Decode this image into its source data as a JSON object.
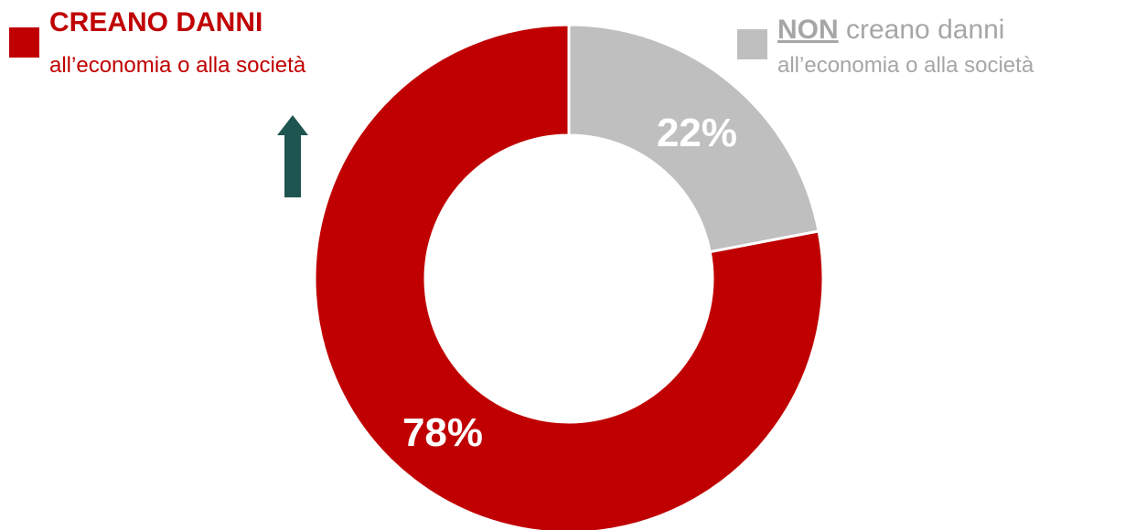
{
  "chart_data": {
    "type": "pie",
    "variant": "donut",
    "slices": [
      {
        "label_bold": "CREANO DANNI",
        "label_rest": "",
        "sublabel": "all’economia o alla società",
        "value": 78,
        "value_label": "78%",
        "color": "#C00000"
      },
      {
        "label_bold": "NON",
        "label_rest": " creano danni",
        "sublabel": "all’economia o alla società",
        "value": 22,
        "value_label": "22%",
        "color": "#BFBFBF"
      }
    ],
    "legend_text_colors": [
      "#C00000",
      "#A6A6A6"
    ],
    "value_label_color": "#FFFFFF",
    "legend_placement": "top"
  },
  "annotation": {
    "icon": "arrow-up-icon",
    "color": "#1F5551"
  }
}
